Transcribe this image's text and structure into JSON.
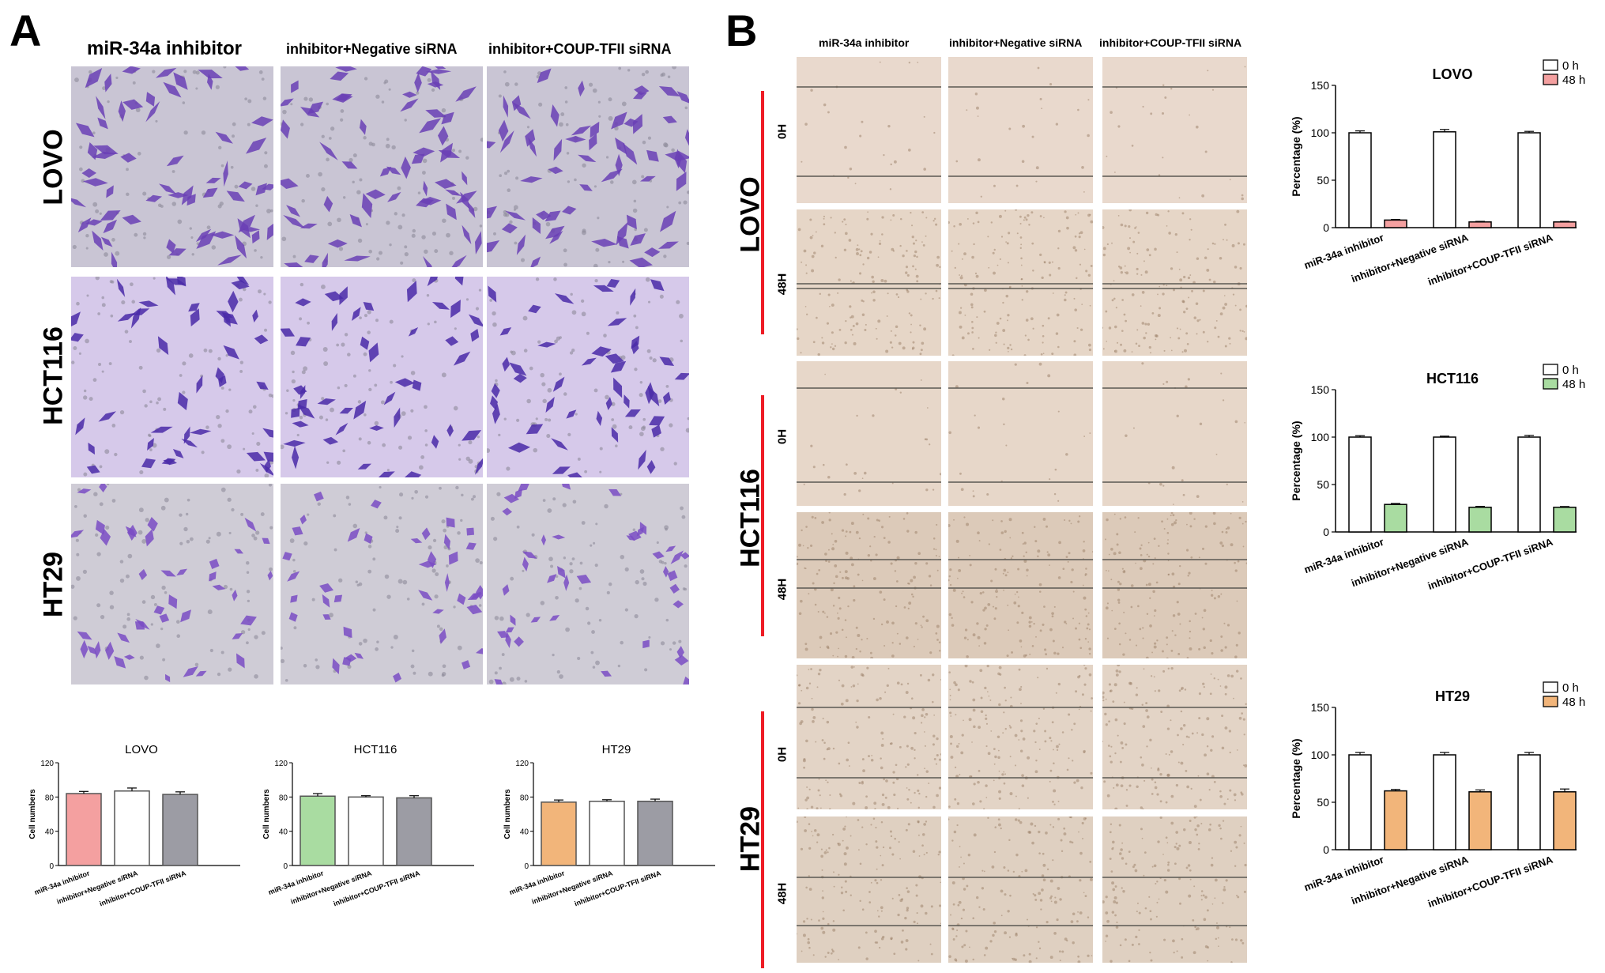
{
  "panel_a": {
    "letter": "A",
    "columns": [
      "miR-34a inhibitor",
      "inhibitor+Negative siRNA",
      "inhibitor+COUP-TFII siRNA"
    ],
    "rows": [
      "LOVO",
      "HCT116",
      "HT29"
    ]
  },
  "panel_b": {
    "letter": "B",
    "columns": [
      "miR-34a inhibitor",
      "inhibitor+Negative siRNA",
      "inhibitor+COUP-TFII siRNA"
    ],
    "rows": [
      "LOVO",
      "HCT116",
      "HT29"
    ],
    "times": [
      "0H",
      "48H"
    ]
  },
  "colors": {
    "stain_purple": "#6a3fb5",
    "scratch_beige": "#e8d9cc",
    "red_bar": "#f4a0a0",
    "green_bar": "#a9dca1",
    "orange_bar": "#f2b57a",
    "gray_bar": "#9c9ca4",
    "red_line": "#ee1c25"
  },
  "chart_data": [
    {
      "type": "bar",
      "title": "LOVO",
      "categories": [
        "miR-34a inhibitor",
        "inhibitor+Negative siRNA",
        "inhibitor+COUP-TFII siRNA"
      ],
      "values": [
        84,
        87,
        83
      ],
      "errors": [
        2.5,
        3.5,
        3
      ],
      "colors": [
        "#f4a0a0",
        "#ffffff",
        "#9c9ca4"
      ],
      "ylabel": "Cell numbers",
      "yticks": [
        "0",
        "40",
        "80",
        "120"
      ],
      "ylim": [
        0,
        120
      ]
    },
    {
      "type": "bar",
      "title": "HCT116",
      "categories": [
        "miR-34a inhibitor",
        "inhibitor+Negative siRNA",
        "inhibitor+COUP-TFII siRNA"
      ],
      "values": [
        81,
        80,
        79
      ],
      "errors": [
        3,
        1.5,
        2.5
      ],
      "colors": [
        "#a9dca1",
        "#ffffff",
        "#9c9ca4"
      ],
      "ylabel": "Cell numbers",
      "yticks": [
        "0",
        "40",
        "80",
        "120"
      ],
      "ylim": [
        0,
        120
      ]
    },
    {
      "type": "bar",
      "title": "HT29",
      "categories": [
        "miR-34a inhibitor",
        "inhibitor+Negative siRNA",
        "inhibitor+COUP-TFII siRNA"
      ],
      "values": [
        74,
        75,
        75
      ],
      "errors": [
        2.5,
        1.8,
        2.5
      ],
      "colors": [
        "#f2b57a",
        "#ffffff",
        "#9c9ca4"
      ],
      "ylabel": "Cell numbers",
      "yticks": [
        "0",
        "40",
        "80",
        "120"
      ],
      "ylim": [
        0,
        120
      ]
    },
    {
      "type": "bar",
      "title": "LOVO",
      "categories": [
        "miR-34a inhibitor",
        "inhibitor+Negative siRNA",
        "inhibitor+COUP-TFII siRNA"
      ],
      "ylabel": "Percentage (%)",
      "yticks": [
        "0",
        "50",
        "100",
        "150"
      ],
      "ylim": [
        0,
        150
      ],
      "legend_position": "top-right",
      "series": [
        {
          "name": "0 h",
          "color": "#ffffff",
          "values": [
            100,
            101,
            100
          ],
          "errors": [
            2,
            2.5,
            1.5
          ]
        },
        {
          "name": "48 h",
          "color": "#f4a0a0",
          "values": [
            8,
            6,
            6
          ],
          "errors": [
            0.6,
            0.6,
            0.6
          ]
        }
      ]
    },
    {
      "type": "bar",
      "title": "HCT116",
      "categories": [
        "miR-34a inhibitor",
        "inhibitor+Negative siRNA",
        "inhibitor+COUP-TFII siRNA"
      ],
      "ylabel": "Percentage (%)",
      "yticks": [
        "0",
        "50",
        "100",
        "150"
      ],
      "ylim": [
        0,
        150
      ],
      "legend_position": "top-right",
      "series": [
        {
          "name": "0 h",
          "color": "#ffffff",
          "values": [
            100,
            100,
            100
          ],
          "errors": [
            1.5,
            1,
            1.8
          ]
        },
        {
          "name": "48 h",
          "color": "#a9dca1",
          "values": [
            29,
            26,
            26
          ],
          "errors": [
            1,
            1,
            0.8
          ]
        }
      ]
    },
    {
      "type": "bar",
      "title": "HT29",
      "categories": [
        "miR-34a inhibitor",
        "inhibitor+Negative siRNA",
        "inhibitor+COUP-TFII siRNA"
      ],
      "ylabel": "Percentage (%)",
      "yticks": [
        "0",
        "50",
        "100",
        "150"
      ],
      "ylim": [
        0,
        150
      ],
      "legend_position": "top-right",
      "series": [
        {
          "name": "0 h",
          "color": "#ffffff",
          "values": [
            100,
            100,
            100
          ],
          "errors": [
            2.5,
            2.5,
            2.5
          ]
        },
        {
          "name": "48 h",
          "color": "#f2b57a",
          "values": [
            62,
            61,
            61
          ],
          "errors": [
            1.5,
            2,
            3
          ]
        }
      ]
    }
  ]
}
